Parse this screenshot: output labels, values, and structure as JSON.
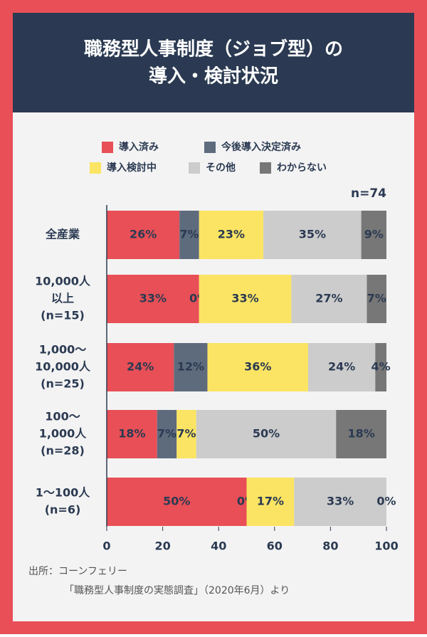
{
  "chart_data": {
    "type": "stacked-bar-horizontal",
    "title": [
      "職務型人事制度（ジョブ型）の",
      "導入・検討状況"
    ],
    "annotation": "n=74",
    "categories": [
      [
        "全産業"
      ],
      [
        "10,000人",
        "以上",
        "(n=15)"
      ],
      [
        "1,000〜",
        "10,000人",
        "(n=25)"
      ],
      [
        "100〜",
        "1,000人",
        "(n=28)"
      ],
      [
        "1〜100人",
        "(n=6)"
      ]
    ],
    "series": [
      {
        "name": "導入済み",
        "color": "#e84f56",
        "values": [
          26,
          33,
          24,
          18,
          50
        ],
        "value_labels": [
          "26%",
          "33%",
          "24%",
          "18%",
          "50%"
        ]
      },
      {
        "name": "今後導入決定済み",
        "color": "#5e6b7d",
        "values": [
          7,
          0,
          12,
          7,
          0
        ],
        "value_labels": [
          "7%",
          "0%",
          "12%",
          "7%",
          "0%"
        ]
      },
      {
        "name": "導入検討中",
        "color": "#fbe463",
        "values": [
          23,
          33,
          36,
          7,
          17
        ],
        "value_labels": [
          "23%",
          "33%",
          "36%",
          "7%",
          "17%"
        ]
      },
      {
        "name": "その他",
        "color": "#cccccc",
        "values": [
          35,
          27,
          24,
          50,
          33
        ],
        "value_labels": [
          "35%",
          "27%",
          "24%",
          "50%",
          "33%"
        ]
      },
      {
        "name": "わからない",
        "color": "#777777",
        "values": [
          9,
          7,
          4,
          18,
          0
        ],
        "value_labels": [
          "9%",
          "7%",
          "4%",
          "18%",
          "0%"
        ]
      }
    ],
    "xlim": [
      0,
      100
    ],
    "xticks": [
      0,
      20,
      40,
      60,
      80,
      100
    ],
    "source": [
      "出所：コーンフェリー",
      "「職務型人事制度の実態調査」（2020年6月）より"
    ]
  }
}
